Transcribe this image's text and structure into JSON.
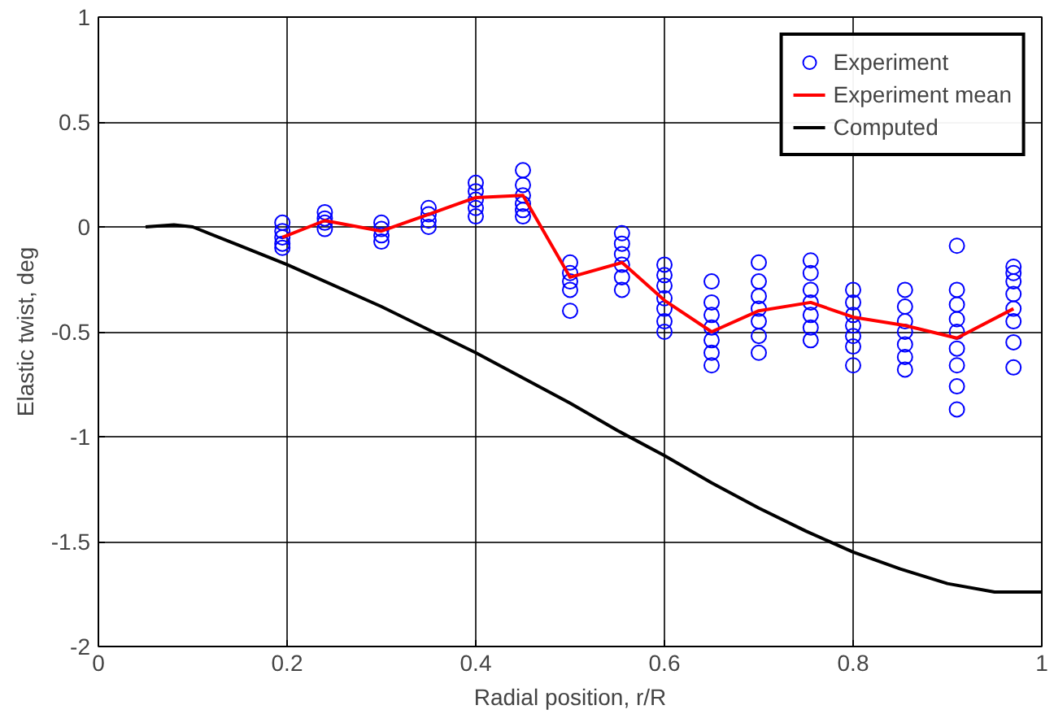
{
  "chart_data": {
    "type": "line",
    "xlabel": "Radial position, r/R",
    "ylabel": "Elastic twist, deg",
    "xlim": [
      0,
      1
    ],
    "ylim": [
      -2,
      1
    ],
    "xticks": [
      0,
      0.2,
      0.4,
      0.6,
      0.8,
      1
    ],
    "yticks": [
      -2,
      -1.5,
      -1,
      -0.5,
      0,
      0.5,
      1
    ],
    "grid": true,
    "legend": "top right",
    "series": [
      {
        "name": "Experiment",
        "type": "scatter",
        "marker": "circle",
        "color": "#0000ff",
        "x": [
          0.195,
          0.195,
          0.195,
          0.195,
          0.195,
          0.24,
          0.24,
          0.24,
          0.24,
          0.3,
          0.3,
          0.3,
          0.3,
          0.35,
          0.35,
          0.35,
          0.35,
          0.4,
          0.4,
          0.4,
          0.4,
          0.4,
          0.45,
          0.45,
          0.45,
          0.45,
          0.45,
          0.45,
          0.5,
          0.5,
          0.5,
          0.5,
          0.5,
          0.555,
          0.555,
          0.555,
          0.555,
          0.555,
          0.555,
          0.6,
          0.6,
          0.6,
          0.6,
          0.6,
          0.6,
          0.6,
          0.65,
          0.65,
          0.65,
          0.65,
          0.65,
          0.65,
          0.65,
          0.7,
          0.7,
          0.7,
          0.7,
          0.7,
          0.7,
          0.7,
          0.755,
          0.755,
          0.755,
          0.755,
          0.755,
          0.755,
          0.755,
          0.8,
          0.8,
          0.8,
          0.8,
          0.8,
          0.8,
          0.8,
          0.855,
          0.855,
          0.855,
          0.855,
          0.855,
          0.855,
          0.855,
          0.91,
          0.91,
          0.91,
          0.91,
          0.91,
          0.91,
          0.91,
          0.91,
          0.91,
          0.97,
          0.97,
          0.97,
          0.97,
          0.97,
          0.97,
          0.97,
          0.97
        ],
        "values": [
          0.02,
          -0.02,
          -0.05,
          -0.08,
          -0.1,
          0.07,
          0.04,
          0.02,
          -0.01,
          0.02,
          -0.01,
          -0.04,
          -0.07,
          0.09,
          0.06,
          0.03,
          0,
          0.21,
          0.17,
          0.13,
          0.09,
          0.05,
          0.27,
          0.2,
          0.15,
          0.11,
          0.08,
          0.05,
          -0.17,
          -0.22,
          -0.26,
          -0.3,
          -0.4,
          -0.03,
          -0.08,
          -0.13,
          -0.18,
          -0.24,
          -0.3,
          -0.18,
          -0.23,
          -0.28,
          -0.34,
          -0.39,
          -0.45,
          -0.5,
          -0.26,
          -0.36,
          -0.42,
          -0.48,
          -0.54,
          -0.6,
          -0.66,
          -0.17,
          -0.26,
          -0.33,
          -0.39,
          -0.45,
          -0.52,
          -0.6,
          -0.16,
          -0.22,
          -0.3,
          -0.36,
          -0.42,
          -0.48,
          -0.54,
          -0.3,
          -0.36,
          -0.42,
          -0.47,
          -0.52,
          -0.57,
          -0.66,
          -0.3,
          -0.38,
          -0.45,
          -0.5,
          -0.56,
          -0.62,
          -0.68,
          -0.09,
          -0.3,
          -0.37,
          -0.44,
          -0.5,
          -0.58,
          -0.66,
          -0.76,
          -0.87,
          -0.19,
          -0.22,
          -0.26,
          -0.32,
          -0.39,
          -0.45,
          -0.55,
          -0.67
        ]
      },
      {
        "name": "Experiment mean",
        "color": "#ff0000",
        "x": [
          0.195,
          0.24,
          0.3,
          0.35,
          0.4,
          0.45,
          0.5,
          0.555,
          0.6,
          0.65,
          0.7,
          0.755,
          0.8,
          0.855,
          0.91,
          0.97
        ],
        "values": [
          -0.05,
          0.03,
          -0.02,
          0.06,
          0.14,
          0.15,
          -0.24,
          -0.17,
          -0.35,
          -0.5,
          -0.4,
          -0.36,
          -0.43,
          -0.47,
          -0.53,
          -0.39
        ]
      },
      {
        "name": "Computed",
        "color": "#000000",
        "x": [
          0.05,
          0.08,
          0.1,
          0.15,
          0.2,
          0.3,
          0.4,
          0.5,
          0.55,
          0.6,
          0.65,
          0.7,
          0.75,
          0.8,
          0.85,
          0.9,
          0.95,
          1.0
        ],
        "values": [
          0,
          0.01,
          0,
          -0.09,
          -0.18,
          -0.38,
          -0.6,
          -0.84,
          -0.97,
          -1.09,
          -1.22,
          -1.34,
          -1.45,
          -1.55,
          -1.63,
          -1.7,
          -1.74,
          -1.74
        ]
      }
    ]
  }
}
